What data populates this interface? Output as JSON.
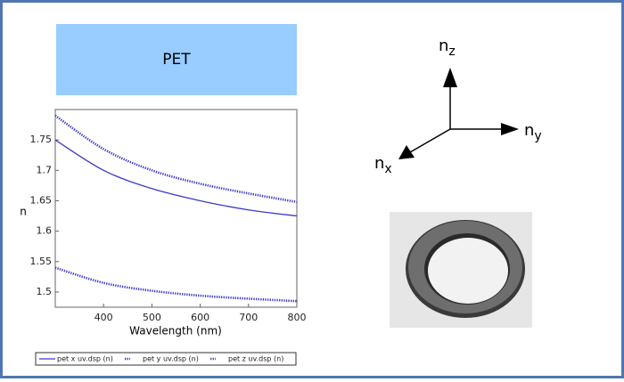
{
  "title": "PET",
  "chart_data": {
    "type": "line",
    "x_label": "Wavelength (nm)",
    "y_label": "n",
    "x": [
      300,
      400,
      500,
      600,
      700,
      800
    ],
    "series": [
      {
        "name": "pet x uv.dsp (n)",
        "color": "#3a3ac8",
        "values": [
          1.75,
          1.7,
          1.67,
          1.65,
          1.635,
          1.625
        ]
      },
      {
        "name": "pet y uv.dsp (n)",
        "color": "#3a3ac8",
        "values": [
          1.79,
          1.735,
          1.7,
          1.678,
          1.662,
          1.648
        ]
      },
      {
        "name": "pet z uv.dsp (n)",
        "color": "#3a3ac8",
        "values": [
          1.54,
          1.515,
          1.502,
          1.494,
          1.489,
          1.485
        ]
      }
    ],
    "xlim": [
      300,
      800
    ],
    "xticks": [
      400,
      500,
      600,
      700,
      800
    ],
    "ylim": [
      1.475,
      1.8
    ],
    "yticks": [
      1.5,
      1.55,
      1.6,
      1.65,
      1.7,
      1.75
    ]
  },
  "axes_diagram": {
    "z": {
      "base": "n",
      "sub": "z"
    },
    "y": {
      "base": "n",
      "sub": "y"
    },
    "x": {
      "base": "n",
      "sub": "x"
    }
  }
}
